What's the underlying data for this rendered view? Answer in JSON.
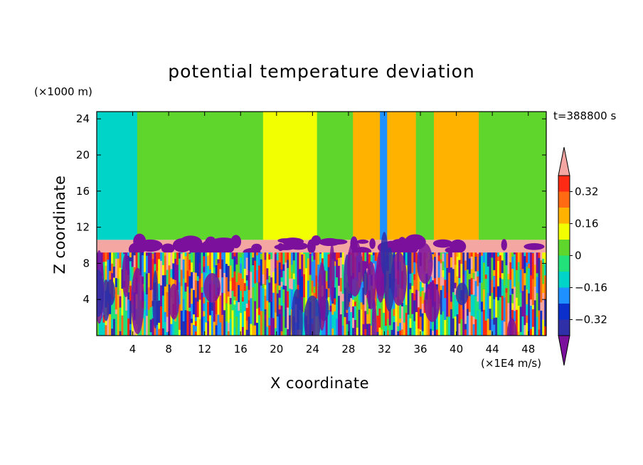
{
  "chart_data": {
    "type": "heatmap",
    "title": "potential temperature deviation",
    "xlabel": "X coordinate",
    "ylabel": "Z coordinate",
    "x_unit": "(×1E4 m/s)",
    "y_unit": "(×1000 m)",
    "time_label": "t=388800 s",
    "xlim": [
      0,
      50
    ],
    "ylim": [
      0,
      24.8
    ],
    "x_ticks": [
      4,
      8,
      12,
      16,
      20,
      24,
      28,
      32,
      36,
      40,
      44,
      48
    ],
    "y_ticks": [
      4,
      8,
      12,
      16,
      20,
      24
    ],
    "colorbar": {
      "labeled_values": [
        "0.32",
        "0.16",
        "0",
        "−0.16",
        "−0.32"
      ],
      "levels": [
        -0.4,
        -0.32,
        -0.24,
        -0.16,
        -0.08,
        0,
        0.08,
        0.16,
        0.24,
        0.32,
        0.4
      ],
      "colors": [
        "#7b109c",
        "#2f2fa8",
        "#0b2fcb",
        "#1e90ff",
        "#00d3c8",
        "#22e07a",
        "#5fd62b",
        "#f2ff00",
        "#ffb300",
        "#ff6a12",
        "#ff2a14",
        "#f4a6a2"
      ],
      "extend": "both"
    },
    "structure": {
      "stratosphere_top": 24.8,
      "tropopause_band": [
        9.2,
        10.6
      ],
      "turbulent_layer": [
        0,
        9.2
      ]
    },
    "upper_layer_columns": [
      {
        "x": [
          0,
          4.5
        ],
        "value": -0.1
      },
      {
        "x": [
          4.5,
          9.5
        ],
        "value": 0.02
      },
      {
        "x": [
          9.5,
          18.5
        ],
        "value": 0.02
      },
      {
        "x": [
          18.5,
          22.5
        ],
        "value": 0.1
      },
      {
        "x": [
          22.5,
          24.5
        ],
        "value": 0.1
      },
      {
        "x": [
          24.5,
          28.5
        ],
        "value": 0.06
      },
      {
        "x": [
          28.5,
          30.5
        ],
        "value": 0.16
      },
      {
        "x": [
          30.5,
          31.5
        ],
        "value": 0.22
      },
      {
        "x": [
          31.5,
          32.3
        ],
        "value": -0.2
      },
      {
        "x": [
          32.3,
          35.5
        ],
        "value": 0.16
      },
      {
        "x": [
          35.5,
          37.5
        ],
        "value": 0.06
      },
      {
        "x": [
          37.5,
          42.5
        ],
        "value": 0.16
      },
      {
        "x": [
          42.5,
          47.5
        ],
        "value": 0.02
      },
      {
        "x": [
          47.5,
          50
        ],
        "value": 0.04
      }
    ]
  }
}
